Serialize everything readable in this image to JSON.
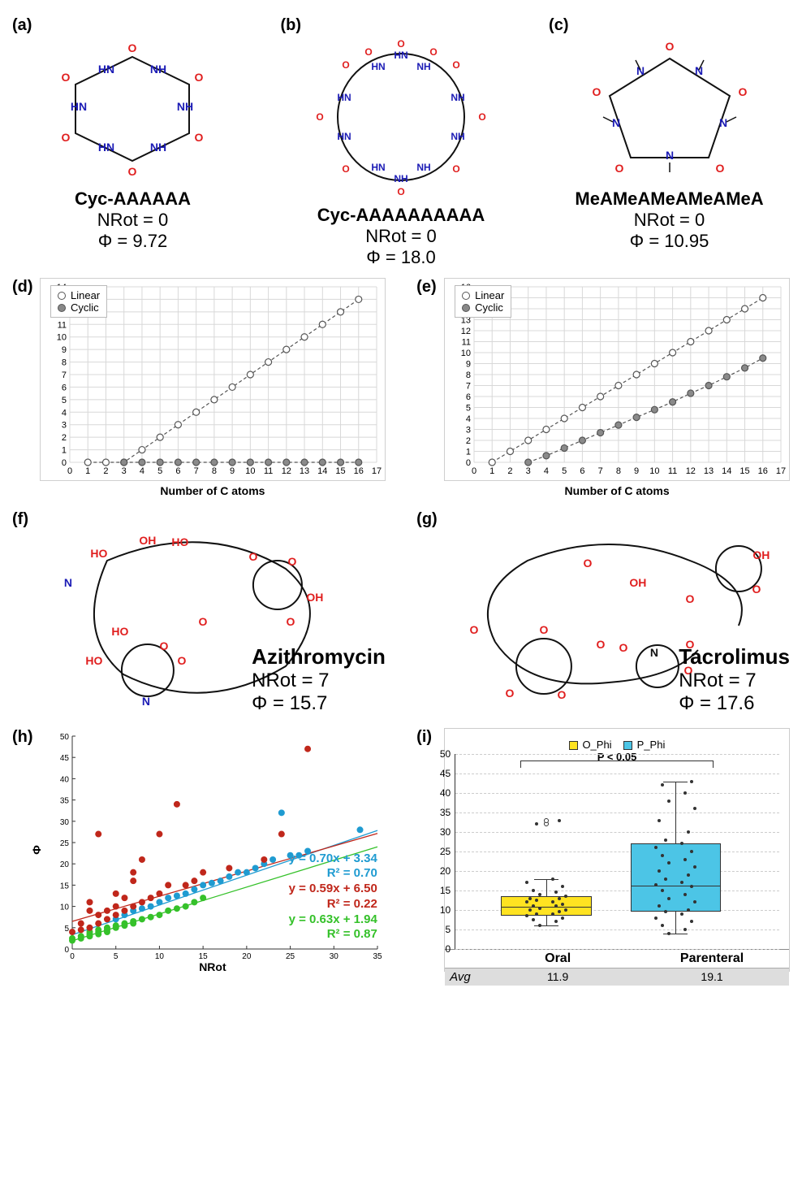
{
  "panels": {
    "a": {
      "label": "(a)",
      "name": "Cyc-AAAAAA",
      "nrot": "NRot = 0",
      "phi": "Φ = 9.72"
    },
    "b": {
      "label": "(b)",
      "name": "Cyc-AAAAAAAAAA",
      "nrot": "NRot = 0",
      "phi": "Φ = 18.0"
    },
    "c": {
      "label": "(c)",
      "name": "MeAMeAMeAMeAMeA",
      "nrot": "NRot = 0",
      "phi": "Φ = 10.95"
    },
    "d": {
      "label": "(d)",
      "xlabel": "Number of C atoms",
      "ylabel": "NRot",
      "legend": {
        "linear": "Linear",
        "cyclic": "Cyclic"
      },
      "xlim": [
        0,
        17
      ],
      "ylim": [
        0,
        14
      ],
      "xtick_step": 1,
      "ytick_step": 1,
      "linear_series": [
        [
          1,
          0
        ],
        [
          2,
          0
        ],
        [
          3,
          0
        ],
        [
          4,
          1
        ],
        [
          5,
          2
        ],
        [
          6,
          3
        ],
        [
          7,
          4
        ],
        [
          8,
          5
        ],
        [
          9,
          6
        ],
        [
          10,
          7
        ],
        [
          11,
          8
        ],
        [
          12,
          9
        ],
        [
          13,
          10
        ],
        [
          14,
          11
        ],
        [
          15,
          12
        ],
        [
          16,
          13
        ]
      ],
      "cyclic_series": [
        [
          3,
          0
        ],
        [
          4,
          0
        ],
        [
          5,
          0
        ],
        [
          6,
          0
        ],
        [
          7,
          0
        ],
        [
          8,
          0
        ],
        [
          9,
          0
        ],
        [
          10,
          0
        ],
        [
          11,
          0
        ],
        [
          12,
          0
        ],
        [
          13,
          0
        ],
        [
          14,
          0
        ],
        [
          15,
          0
        ],
        [
          16,
          0
        ]
      ],
      "marker_linear": {
        "fill": "#ffffff",
        "stroke": "#555555"
      },
      "marker_cyclic": {
        "fill": "#8a8a8a",
        "stroke": "#555555"
      },
      "line_style": "dashed",
      "grid_color": "#d8d8d8"
    },
    "e": {
      "label": "(e)",
      "xlabel": "Number of C atoms",
      "ylabel": "Φ",
      "legend": {
        "linear": "Linear",
        "cyclic": "Cyclic"
      },
      "xlim": [
        0,
        17
      ],
      "ylim": [
        0,
        16
      ],
      "xtick_step": 1,
      "ytick_step": 1,
      "linear_series": [
        [
          1,
          0
        ],
        [
          2,
          1
        ],
        [
          3,
          2
        ],
        [
          4,
          3
        ],
        [
          5,
          4
        ],
        [
          6,
          5
        ],
        [
          7,
          6
        ],
        [
          8,
          7
        ],
        [
          9,
          8
        ],
        [
          10,
          9
        ],
        [
          11,
          10
        ],
        [
          12,
          11
        ],
        [
          13,
          12
        ],
        [
          14,
          13
        ],
        [
          15,
          14
        ],
        [
          16,
          15
        ]
      ],
      "cyclic_series": [
        [
          3,
          0
        ],
        [
          4,
          0.6
        ],
        [
          5,
          1.3
        ],
        [
          6,
          2.0
        ],
        [
          7,
          2.7
        ],
        [
          8,
          3.4
        ],
        [
          9,
          4.1
        ],
        [
          10,
          4.8
        ],
        [
          11,
          5.5
        ],
        [
          12,
          6.3
        ],
        [
          13,
          7.0
        ],
        [
          14,
          7.8
        ],
        [
          15,
          8.6
        ],
        [
          16,
          9.5
        ]
      ],
      "marker_linear": {
        "fill": "#ffffff",
        "stroke": "#555555"
      },
      "marker_cyclic": {
        "fill": "#8a8a8a",
        "stroke": "#555555"
      },
      "line_style": "dashed",
      "grid_color": "#d8d8d8"
    },
    "f": {
      "label": "(f)",
      "name": "Azithromycin",
      "nrot": "NRot = 7",
      "phi": "Φ = 15.7"
    },
    "g": {
      "label": "(g)",
      "name": "Tacrolimus",
      "nrot": "NRot = 7",
      "phi": "Φ = 17.6"
    },
    "h": {
      "label": "(h)",
      "xlabel": "NRot",
      "ylabel": "Φ",
      "xlim": [
        0,
        35
      ],
      "ylim": [
        0,
        50
      ],
      "series": {
        "blue": {
          "color": "#1f9bd1",
          "eq": "y = 0.70x + 3.34",
          "r2": "R² = 0.70"
        },
        "red": {
          "color": "#c0271b",
          "eq": "y = 0.59x + 6.50",
          "r2": "R² = 0.22"
        },
        "green": {
          "color": "#35c12a",
          "eq": "y = 0.63x + 1.94",
          "r2": "R² = 0.87"
        }
      },
      "fit_lines": {
        "blue": {
          "slope": 0.7,
          "intercept": 3.34
        },
        "red": {
          "slope": 0.59,
          "intercept": 6.5
        },
        "green": {
          "slope": 0.63,
          "intercept": 1.94
        }
      },
      "scatter_red": [
        [
          0,
          4
        ],
        [
          1,
          4.5
        ],
        [
          1,
          6
        ],
        [
          2,
          5
        ],
        [
          2,
          9
        ],
        [
          2,
          11
        ],
        [
          3,
          6
        ],
        [
          3,
          8
        ],
        [
          3,
          27
        ],
        [
          4,
          7
        ],
        [
          4,
          9
        ],
        [
          5,
          8
        ],
        [
          5,
          10
        ],
        [
          5,
          13
        ],
        [
          6,
          9
        ],
        [
          6,
          12
        ],
        [
          7,
          10
        ],
        [
          7,
          16
        ],
        [
          7,
          18
        ],
        [
          8,
          11
        ],
        [
          8,
          21
        ],
        [
          9,
          12
        ],
        [
          10,
          13
        ],
        [
          10,
          27
        ],
        [
          11,
          15
        ],
        [
          12,
          34
        ],
        [
          13,
          15
        ],
        [
          14,
          16
        ],
        [
          15,
          18
        ],
        [
          18,
          19
        ],
        [
          22,
          21
        ],
        [
          24,
          27
        ],
        [
          27,
          47
        ]
      ],
      "scatter_blue": [
        [
          5,
          7
        ],
        [
          6,
          8
        ],
        [
          7,
          9
        ],
        [
          8,
          9.5
        ],
        [
          9,
          10
        ],
        [
          10,
          11
        ],
        [
          11,
          12
        ],
        [
          12,
          12.5
        ],
        [
          13,
          13
        ],
        [
          14,
          14
        ],
        [
          15,
          15
        ],
        [
          16,
          15.5
        ],
        [
          17,
          16
        ],
        [
          18,
          17
        ],
        [
          19,
          18
        ],
        [
          20,
          18
        ],
        [
          21,
          19
        ],
        [
          22,
          20
        ],
        [
          23,
          21
        ],
        [
          24,
          32
        ],
        [
          25,
          22
        ],
        [
          26,
          22
        ],
        [
          27,
          23
        ],
        [
          33,
          28
        ]
      ],
      "scatter_green": [
        [
          0,
          2
        ],
        [
          0,
          2.5
        ],
        [
          1,
          2.5
        ],
        [
          1,
          3
        ],
        [
          2,
          3
        ],
        [
          2,
          3.5
        ],
        [
          2,
          4
        ],
        [
          3,
          3.5
        ],
        [
          3,
          4
        ],
        [
          3,
          4.5
        ],
        [
          4,
          4
        ],
        [
          4,
          4.5
        ],
        [
          4,
          5
        ],
        [
          5,
          5
        ],
        [
          5,
          5.5
        ],
        [
          6,
          5.5
        ],
        [
          6,
          6
        ],
        [
          7,
          6
        ],
        [
          7,
          6.5
        ],
        [
          8,
          7
        ],
        [
          9,
          7.5
        ],
        [
          10,
          8
        ],
        [
          11,
          9
        ],
        [
          12,
          9.5
        ],
        [
          13,
          10
        ],
        [
          14,
          11
        ],
        [
          15,
          12
        ]
      ]
    },
    "i": {
      "label": "(i)",
      "legend": {
        "o": "O_Phi",
        "o_color": "#ffe321",
        "p": "P_Phi",
        "p_color": "#4cc5e6"
      },
      "ylim": [
        0,
        50
      ],
      "ytick_step": 5,
      "pvalue": "P < 0.05",
      "categories": [
        "Oral",
        "Parenteral"
      ],
      "avg_label": "Avg",
      "avg": [
        "11.9",
        "19.1"
      ],
      "box_oral": {
        "q1": 8.5,
        "median": 11,
        "q3": 13.5,
        "whisk_lo": 6,
        "whisk_hi": 18,
        "color": "#ffe321",
        "outliers": [
          32,
          33
        ]
      },
      "box_parenteral": {
        "q1": 9.5,
        "median": 16.5,
        "q3": 27,
        "whisk_lo": 4,
        "whisk_hi": 43,
        "color": "#4cc5e6",
        "outliers": []
      },
      "jitter_oral": [
        6,
        7,
        7.5,
        8,
        8.5,
        9,
        9,
        9.5,
        10,
        10,
        10.5,
        11,
        11,
        11.5,
        12,
        12,
        12.5,
        13,
        13,
        13.5,
        14,
        14.5,
        15,
        16,
        17,
        18,
        32,
        33
      ],
      "jitter_parenteral": [
        4,
        5,
        6,
        7,
        8,
        9,
        9.5,
        10,
        11,
        12,
        13,
        14,
        15,
        16,
        16.5,
        17,
        18,
        19,
        20,
        21,
        22,
        23,
        24,
        25,
        26,
        27,
        28,
        30,
        33,
        36,
        38,
        40,
        42,
        43
      ]
    }
  },
  "colors": {
    "O_red": "#e01e1e",
    "N_blue": "#1b1bb5",
    "C_black": "#111111"
  }
}
